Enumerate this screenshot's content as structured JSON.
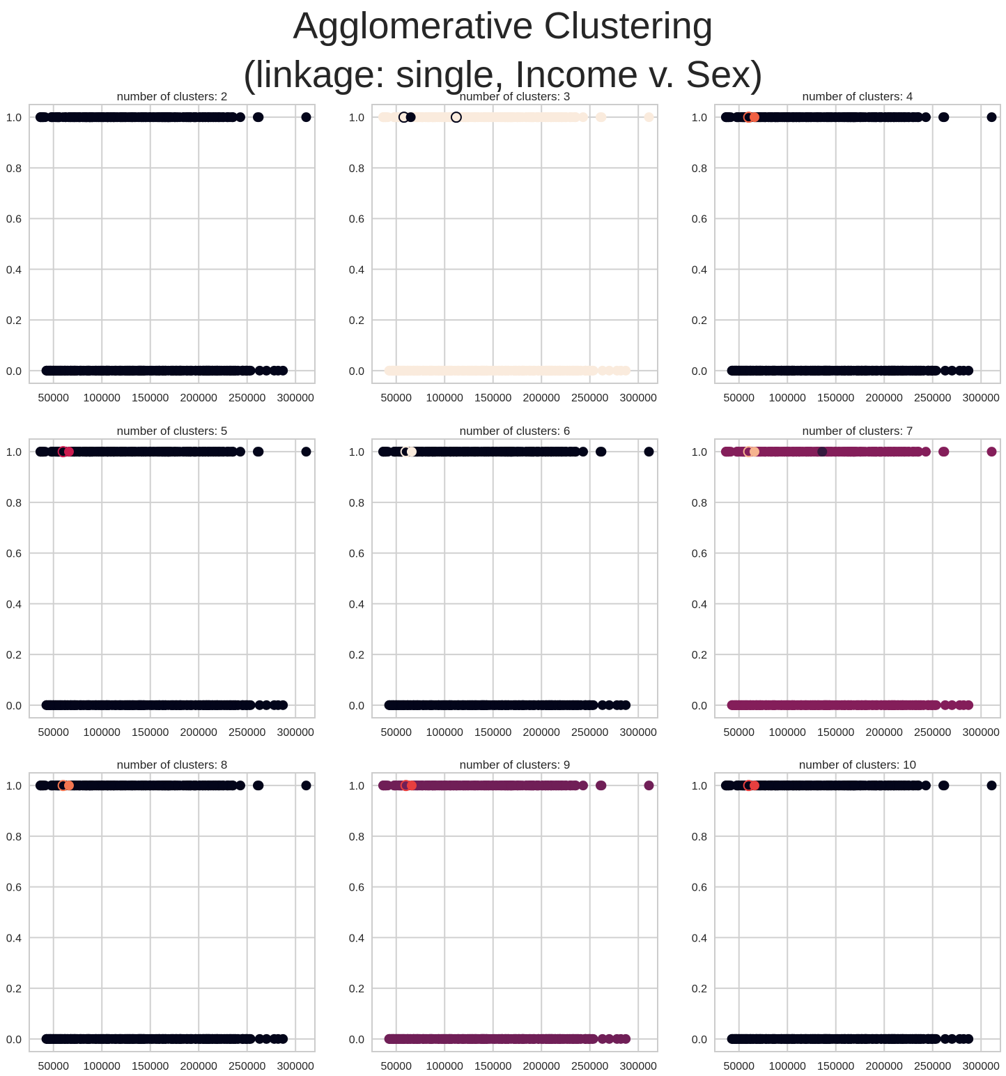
{
  "title_line1": "Agglomerative Clustering",
  "title_line2": "(linkage: single, Income v. Sex)",
  "chart_data": [
    {
      "type": "scatter",
      "title": "number of clusters: 2",
      "x_ticks": [
        50000,
        100000,
        150000,
        200000,
        250000,
        300000
      ],
      "y_ticks": [
        "0.0",
        "0.2",
        "0.4",
        "0.6",
        "0.8",
        "1.0"
      ],
      "xlim": [
        25000,
        320000
      ],
      "ylim": [
        -0.05,
        1.05
      ],
      "grid": true,
      "base_color": "#03051a",
      "points": []
    },
    {
      "type": "scatter",
      "title": "number of clusters: 3",
      "x_ticks": [
        50000,
        100000,
        150000,
        200000,
        250000,
        300000
      ],
      "y_ticks": [
        "0.0",
        "0.2",
        "0.4",
        "0.6",
        "0.8",
        "1.0"
      ],
      "xlim": [
        25000,
        320000
      ],
      "ylim": [
        -0.05,
        1.05
      ],
      "grid": true,
      "base_color": "#faebdd",
      "points": [
        {
          "x": 58000,
          "y": 1,
          "color": "#faebdd",
          "ring": "#03051a"
        },
        {
          "x": 65000,
          "y": 1,
          "color": "#03051a"
        },
        {
          "x": 112000,
          "y": 1,
          "color": "#faebdd",
          "ring": "#03051a"
        }
      ]
    },
    {
      "type": "scatter",
      "title": "number of clusters: 4",
      "x_ticks": [
        50000,
        100000,
        150000,
        200000,
        250000,
        300000
      ],
      "y_ticks": [
        "0.0",
        "0.2",
        "0.4",
        "0.6",
        "0.8",
        "1.0"
      ],
      "xlim": [
        25000,
        320000
      ],
      "ylim": [
        -0.05,
        1.05
      ],
      "grid": true,
      "base_color": "#03051a",
      "points": [
        {
          "x": 60000,
          "y": 1,
          "color": "#03051a",
          "ring": "#f06043"
        },
        {
          "x": 66000,
          "y": 1,
          "color": "#f06043"
        }
      ]
    },
    {
      "type": "scatter",
      "title": "number of clusters: 5",
      "x_ticks": [
        50000,
        100000,
        150000,
        200000,
        250000,
        300000
      ],
      "y_ticks": [
        "0.0",
        "0.2",
        "0.4",
        "0.6",
        "0.8",
        "1.0"
      ],
      "xlim": [
        25000,
        320000
      ],
      "ylim": [
        -0.05,
        1.05
      ],
      "grid": true,
      "base_color": "#03051a",
      "points": [
        {
          "x": 60000,
          "y": 1,
          "color": "#03051a",
          "ring": "#cb1b4f"
        },
        {
          "x": 66000,
          "y": 1,
          "color": "#cb1b4f"
        }
      ]
    },
    {
      "type": "scatter",
      "title": "number of clusters: 6",
      "x_ticks": [
        50000,
        100000,
        150000,
        200000,
        250000,
        300000
      ],
      "y_ticks": [
        "0.0",
        "0.2",
        "0.4",
        "0.6",
        "0.8",
        "1.0"
      ],
      "xlim": [
        25000,
        320000
      ],
      "ylim": [
        -0.05,
        1.05
      ],
      "grid": true,
      "base_color": "#03051a",
      "points": [
        {
          "x": 60000,
          "y": 1,
          "color": "#03051a",
          "ring": "#faebdd"
        },
        {
          "x": 66000,
          "y": 1,
          "color": "#faebdd"
        }
      ]
    },
    {
      "type": "scatter",
      "title": "number of clusters: 7",
      "x_ticks": [
        50000,
        100000,
        150000,
        200000,
        250000,
        300000
      ],
      "y_ticks": [
        "0.0",
        "0.2",
        "0.4",
        "0.6",
        "0.8",
        "1.0"
      ],
      "xlim": [
        25000,
        320000
      ],
      "ylim": [
        -0.05,
        1.05
      ],
      "grid": true,
      "base_color": "#841e5a",
      "points": [
        {
          "x": 60000,
          "y": 1,
          "color": "#841e5a",
          "ring": "#f6b48f"
        },
        {
          "x": 66000,
          "y": 1,
          "color": "#f6b48f"
        },
        {
          "x": 136000,
          "y": 1,
          "color": "#35193e"
        }
      ]
    },
    {
      "type": "scatter",
      "title": "number of clusters: 8",
      "x_ticks": [
        50000,
        100000,
        150000,
        200000,
        250000,
        300000
      ],
      "y_ticks": [
        "0.0",
        "0.2",
        "0.4",
        "0.6",
        "0.8",
        "1.0"
      ],
      "xlim": [
        25000,
        320000
      ],
      "ylim": [
        -0.05,
        1.05
      ],
      "grid": true,
      "base_color": "#03051a",
      "points": [
        {
          "x": 60000,
          "y": 1,
          "color": "#03051a",
          "ring": "#f37651"
        },
        {
          "x": 66000,
          "y": 1,
          "color": "#f37651"
        }
      ]
    },
    {
      "type": "scatter",
      "title": "number of clusters: 9",
      "x_ticks": [
        50000,
        100000,
        150000,
        200000,
        250000,
        300000
      ],
      "y_ticks": [
        "0.0",
        "0.2",
        "0.4",
        "0.6",
        "0.8",
        "1.0"
      ],
      "xlim": [
        25000,
        320000
      ],
      "ylim": [
        -0.05,
        1.05
      ],
      "grid": true,
      "base_color": "#701f57",
      "points": [
        {
          "x": 60000,
          "y": 1,
          "color": "#701f57",
          "ring": "#e83f3f"
        },
        {
          "x": 66000,
          "y": 1,
          "color": "#e83f3f"
        }
      ]
    },
    {
      "type": "scatter",
      "title": "number of clusters: 10",
      "x_ticks": [
        50000,
        100000,
        150000,
        200000,
        250000,
        300000
      ],
      "y_ticks": [
        "0.0",
        "0.2",
        "0.4",
        "0.6",
        "0.8",
        "1.0"
      ],
      "xlim": [
        25000,
        320000
      ],
      "ylim": [
        -0.05,
        1.05
      ],
      "grid": true,
      "base_color": "#03051a",
      "points": [
        {
          "x": 60000,
          "y": 1,
          "color": "#03051a",
          "ring": "#e83f3f"
        },
        {
          "x": 66000,
          "y": 1,
          "color": "#e83f3f"
        }
      ]
    }
  ]
}
